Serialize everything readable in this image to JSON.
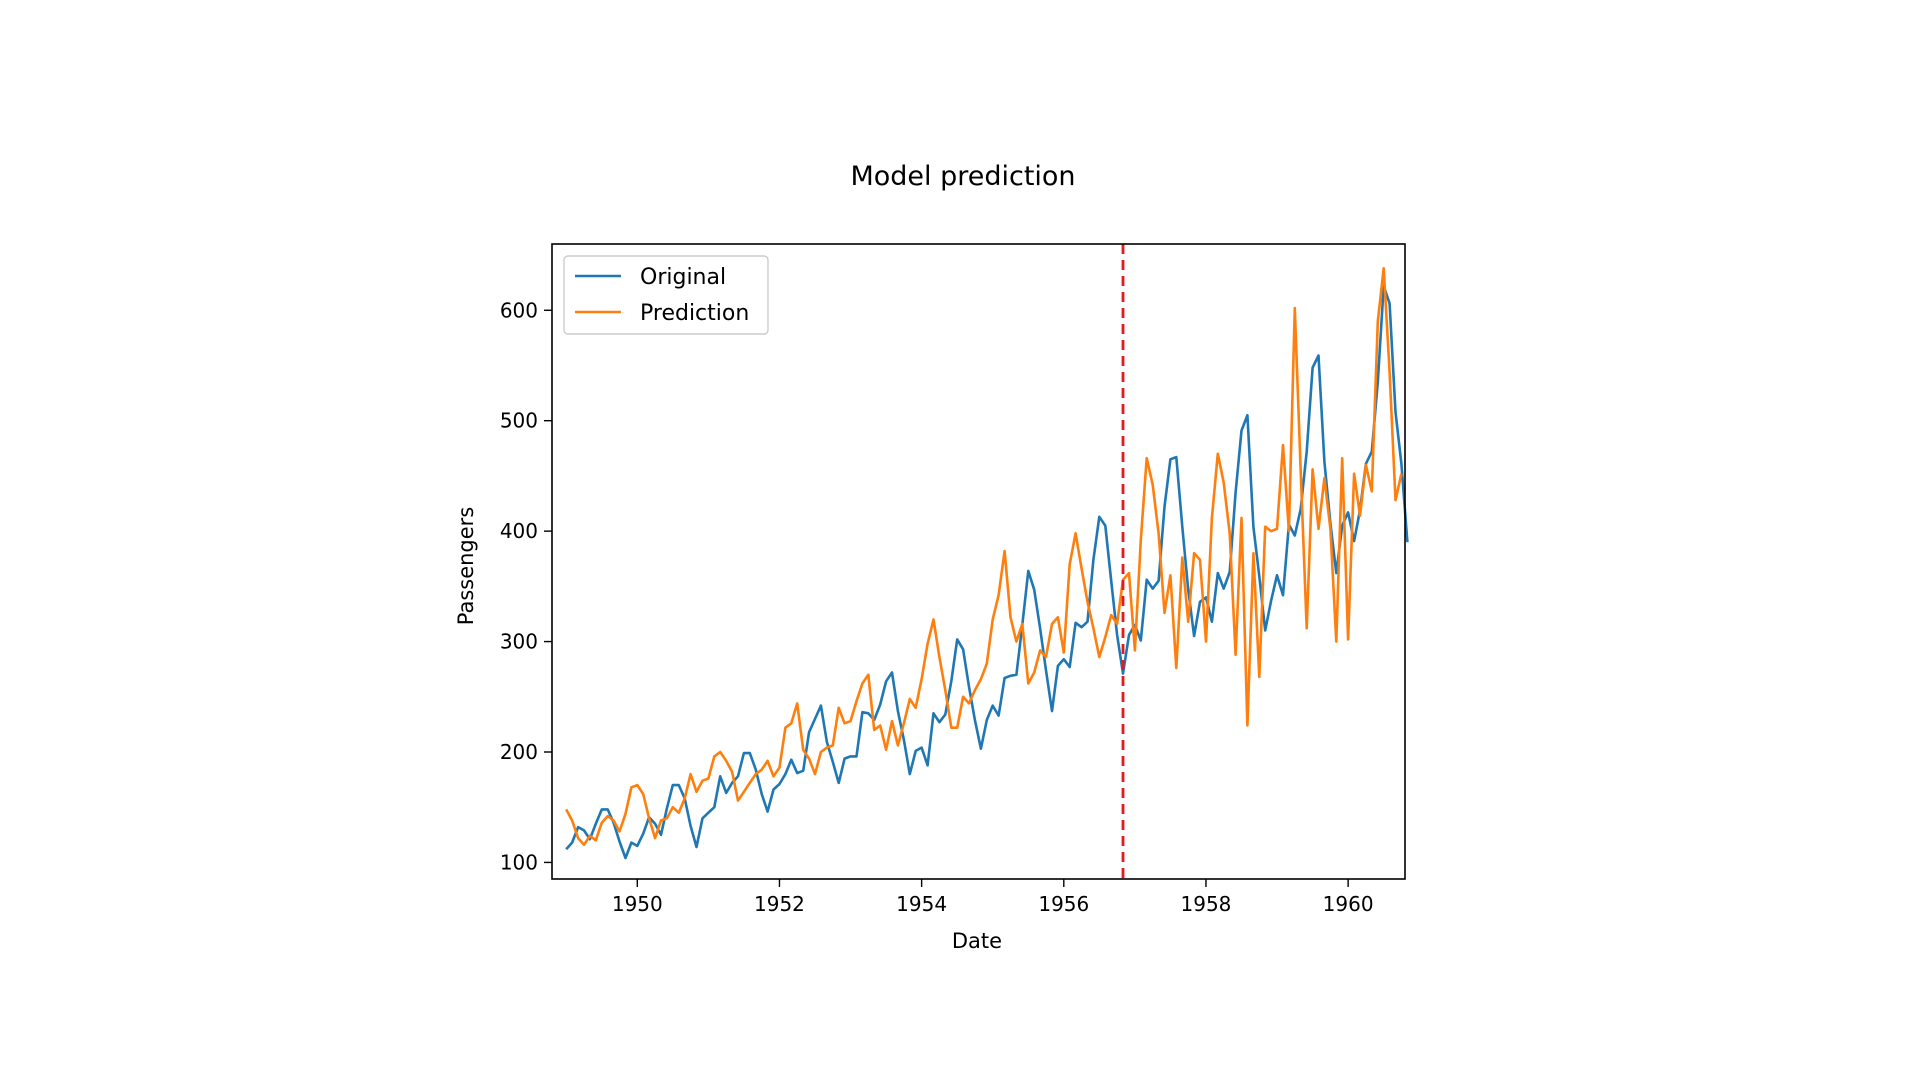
{
  "chart_data": {
    "type": "line",
    "title": "Model prediction",
    "xlabel": "Date",
    "ylabel": "Passengers",
    "xlim": [
      1948.8,
      1960.8
    ],
    "ylim": [
      85,
      660
    ],
    "xticks": [
      1950,
      1952,
      1954,
      1956,
      1958,
      1960
    ],
    "yticks": [
      100,
      200,
      300,
      400,
      500,
      600
    ],
    "grid": false,
    "legend_position": "top-left",
    "split_line": {
      "x": 1956.833,
      "color": "#e41a1c",
      "style": "dashed"
    },
    "x_start": 1949.0,
    "x_step": 0.0833333,
    "series": [
      {
        "name": "Original",
        "color": "#1f77b4",
        "values": [
          112,
          118,
          132,
          129,
          121,
          135,
          148,
          148,
          136,
          119,
          104,
          118,
          115,
          126,
          141,
          135,
          125,
          149,
          170,
          170,
          158,
          133,
          114,
          140,
          145,
          150,
          178,
          163,
          172,
          178,
          199,
          199,
          184,
          162,
          146,
          166,
          171,
          180,
          193,
          181,
          183,
          218,
          230,
          242,
          209,
          191,
          172,
          194,
          196,
          196,
          236,
          235,
          229,
          243,
          264,
          272,
          237,
          211,
          180,
          201,
          204,
          188,
          235,
          227,
          234,
          264,
          302,
          293,
          259,
          229,
          203,
          229,
          242,
          233,
          267,
          269,
          270,
          315,
          364,
          347,
          312,
          274,
          237,
          278,
          284,
          277,
          317,
          313,
          318,
          374,
          413,
          405,
          355,
          306,
          271,
          306,
          315,
          301,
          356,
          348,
          355,
          422,
          465,
          467,
          404,
          347,
          305,
          336,
          340,
          318,
          362,
          348,
          363,
          435,
          491,
          505,
          404,
          359,
          310,
          337,
          360,
          342,
          406,
          396,
          420,
          472,
          548,
          559,
          463,
          407,
          362,
          405,
          417,
          391,
          419,
          461,
          472,
          535,
          622,
          606,
          508,
          461,
          390
        ]
      },
      {
        "name": "Prediction",
        "color": "#ff7f0e",
        "values": [
          148,
          138,
          122,
          116,
          124,
          120,
          136,
          142,
          138,
          128,
          144,
          168,
          170,
          162,
          140,
          122,
          138,
          140,
          150,
          145,
          158,
          180,
          164,
          174,
          176,
          196,
          200,
          192,
          182,
          156,
          164,
          172,
          180,
          184,
          192,
          178,
          186,
          222,
          226,
          244,
          202,
          194,
          180,
          200,
          204,
          206,
          240,
          226,
          228,
          246,
          262,
          270,
          220,
          224,
          202,
          228,
          206,
          226,
          248,
          240,
          266,
          298,
          320,
          286,
          256,
          222,
          222,
          250,
          244,
          256,
          266,
          280,
          320,
          342,
          382,
          322,
          300,
          316,
          262,
          272,
          292,
          286,
          316,
          322,
          290,
          370,
          398,
          366,
          336,
          312,
          286,
          304,
          324,
          316,
          356,
          362,
          292,
          392,
          466,
          442,
          398,
          326,
          360,
          276,
          376,
          318,
          380,
          374,
          300,
          412,
          470,
          444,
          398,
          288,
          412,
          224,
          380,
          268,
          404,
          400,
          402,
          478,
          400,
          602,
          454,
          312,
          456,
          402,
          448,
          402,
          300,
          466,
          302,
          452,
          414,
          460,
          436,
          590,
          638,
          544,
          428,
          452
        ]
      }
    ]
  },
  "legend": {
    "original": "Original",
    "prediction": "Prediction"
  }
}
